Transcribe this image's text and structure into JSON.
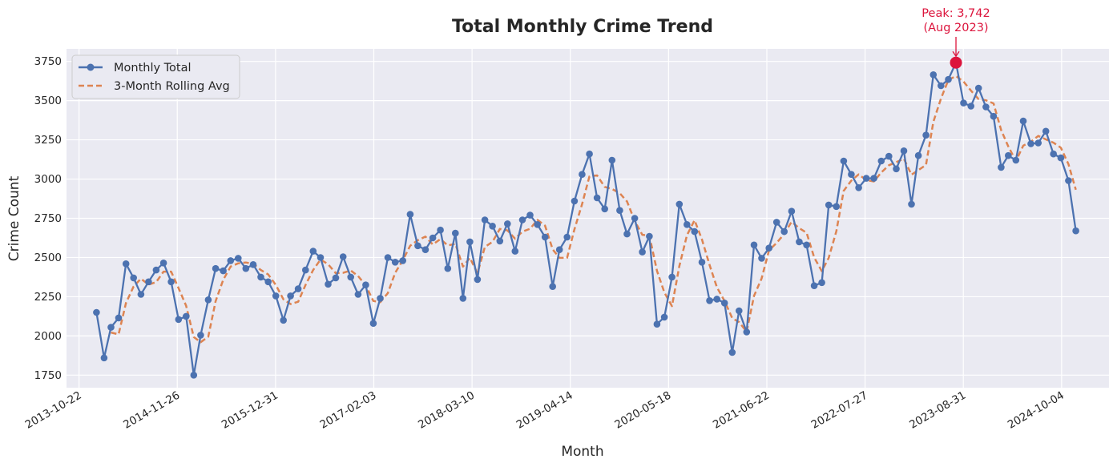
{
  "chart_data": {
    "type": "line",
    "title": "Total Monthly Crime Trend",
    "xlabel": "Month",
    "ylabel": "Crime Count",
    "xlim": [
      "2013-09-01",
      "2025-04-15"
    ],
    "ylim": [
      1670,
      3830
    ],
    "grid": true,
    "legend_position": "top-left",
    "x_ticks": [
      "2013-10-22",
      "2014-11-26",
      "2015-12-31",
      "2017-02-03",
      "2018-03-10",
      "2019-04-14",
      "2020-05-18",
      "2021-06-22",
      "2022-07-27",
      "2023-08-31",
      "2024-10-04"
    ],
    "y_ticks": [
      1750,
      2000,
      2250,
      2500,
      2750,
      3000,
      3250,
      3500,
      3750
    ],
    "x": [
      "2014-01",
      "2014-02",
      "2014-03",
      "2014-04",
      "2014-05",
      "2014-06",
      "2014-07",
      "2014-08",
      "2014-09",
      "2014-10",
      "2014-11",
      "2014-12",
      "2015-01",
      "2015-02",
      "2015-03",
      "2015-04",
      "2015-05",
      "2015-06",
      "2015-07",
      "2015-08",
      "2015-09",
      "2015-10",
      "2015-11",
      "2015-12",
      "2016-01",
      "2016-02",
      "2016-03",
      "2016-04",
      "2016-05",
      "2016-06",
      "2016-07",
      "2016-08",
      "2016-09",
      "2016-10",
      "2016-11",
      "2016-12",
      "2017-01",
      "2017-02",
      "2017-03",
      "2017-04",
      "2017-05",
      "2017-06",
      "2017-07",
      "2017-08",
      "2017-09",
      "2017-10",
      "2017-11",
      "2017-12",
      "2018-01",
      "2018-02",
      "2018-03",
      "2018-04",
      "2018-05",
      "2018-06",
      "2018-07",
      "2018-08",
      "2018-09",
      "2018-10",
      "2018-11",
      "2018-12",
      "2019-01",
      "2019-02",
      "2019-03",
      "2019-04",
      "2019-05",
      "2019-06",
      "2019-07",
      "2019-08",
      "2019-09",
      "2019-10",
      "2019-11",
      "2019-12",
      "2020-01",
      "2020-02",
      "2020-03",
      "2020-04",
      "2020-05",
      "2020-06",
      "2020-07",
      "2020-08",
      "2020-09",
      "2020-10",
      "2020-11",
      "2020-12",
      "2021-01",
      "2021-02",
      "2021-03",
      "2021-04",
      "2021-05",
      "2021-06",
      "2021-07",
      "2021-08",
      "2021-09",
      "2021-10",
      "2021-11",
      "2021-12",
      "2022-01",
      "2022-02",
      "2022-03",
      "2022-04",
      "2022-05",
      "2022-06",
      "2022-07",
      "2022-08",
      "2022-09",
      "2022-10",
      "2022-11",
      "2022-12",
      "2023-01",
      "2023-02",
      "2023-03",
      "2023-04",
      "2023-05",
      "2023-06",
      "2023-07",
      "2023-08",
      "2023-09",
      "2023-10",
      "2023-11",
      "2023-12",
      "2024-01",
      "2024-02",
      "2024-03",
      "2024-04",
      "2024-05",
      "2024-06",
      "2024-07",
      "2024-08",
      "2024-09",
      "2024-10",
      "2024-11",
      "2024-12"
    ],
    "series": [
      {
        "name": "Monthly Total",
        "color": "#4c72b0",
        "style": "solid-with-markers",
        "values": [
          2150,
          1860,
          2055,
          2115,
          2460,
          2370,
          2265,
          2345,
          2420,
          2465,
          2345,
          2105,
          2125,
          1750,
          2005,
          2230,
          2430,
          2415,
          2480,
          2495,
          2430,
          2455,
          2375,
          2345,
          2255,
          2100,
          2255,
          2300,
          2420,
          2540,
          2500,
          2330,
          2370,
          2505,
          2375,
          2265,
          2325,
          2080,
          2240,
          2500,
          2470,
          2480,
          2775,
          2575,
          2550,
          2625,
          2675,
          2430,
          2655,
          2240,
          2600,
          2360,
          2740,
          2700,
          2605,
          2715,
          2540,
          2740,
          2770,
          2710,
          2630,
          2315,
          2550,
          2630,
          2860,
          3030,
          3160,
          2880,
          2810,
          3120,
          2800,
          2650,
          2750,
          2535,
          2635,
          2075,
          2120,
          2375,
          2840,
          2710,
          2665,
          2470,
          2225,
          2235,
          2210,
          1895,
          2160,
          2025,
          2580,
          2495,
          2560,
          2725,
          2665,
          2795,
          2600,
          2580,
          2320,
          2340,
          2835,
          2825,
          3115,
          3030,
          2945,
          3005,
          3005,
          3115,
          3145,
          3065,
          3180,
          2840,
          3150,
          3280,
          3665,
          3595,
          3635,
          3742,
          3485,
          3465,
          3580,
          3460,
          3400,
          3075,
          3150,
          3120,
          3370,
          3225,
          3230,
          3305,
          3160,
          3135,
          2990,
          2670
        ]
      },
      {
        "name": "3-Month Rolling Avg",
        "color": "#dd8452",
        "style": "dashed",
        "values": [
          null,
          null,
          2022,
          2010,
          2210,
          2315,
          2365,
          2327,
          2343,
          2410,
          2410,
          2305,
          2192,
          1993,
          1960,
          1995,
          2222,
          2358,
          2442,
          2463,
          2468,
          2460,
          2420,
          2392,
          2325,
          2233,
          2203,
          2218,
          2325,
          2420,
          2487,
          2457,
          2400,
          2402,
          2417,
          2382,
          2322,
          2223,
          2215,
          2273,
          2403,
          2483,
          2575,
          2610,
          2633,
          2583,
          2617,
          2577,
          2587,
          2442,
          2498,
          2400,
          2567,
          2600,
          2682,
          2673,
          2620,
          2665,
          2683,
          2740,
          2703,
          2552,
          2498,
          2498,
          2680,
          2840,
          3017,
          3023,
          2950,
          2937,
          2910,
          2857,
          2733,
          2645,
          2640,
          2415,
          2277,
          2190,
          2445,
          2642,
          2738,
          2615,
          2453,
          2310,
          2223,
          2113,
          2088,
          2027,
          2255,
          2367,
          2545,
          2593,
          2650,
          2728,
          2687,
          2658,
          2500,
          2413,
          2498,
          2667,
          2925,
          2990,
          3030,
          2993,
          2985,
          3042,
          3088,
          3108,
          3130,
          3028,
          3057,
          3090,
          3365,
          3513,
          3632,
          3657,
          3621,
          3564,
          3510,
          3502,
          3482,
          3312,
          3208,
          3115,
          3213,
          3238,
          3275,
          3253,
          3232,
          3200,
          3095,
          2932
        ]
      }
    ],
    "annotation": {
      "text_line1": "Peak: 3,742",
      "text_line2": "(Aug 2023)",
      "x": "2023-08",
      "y": 3742,
      "color": "#dc143c"
    }
  }
}
